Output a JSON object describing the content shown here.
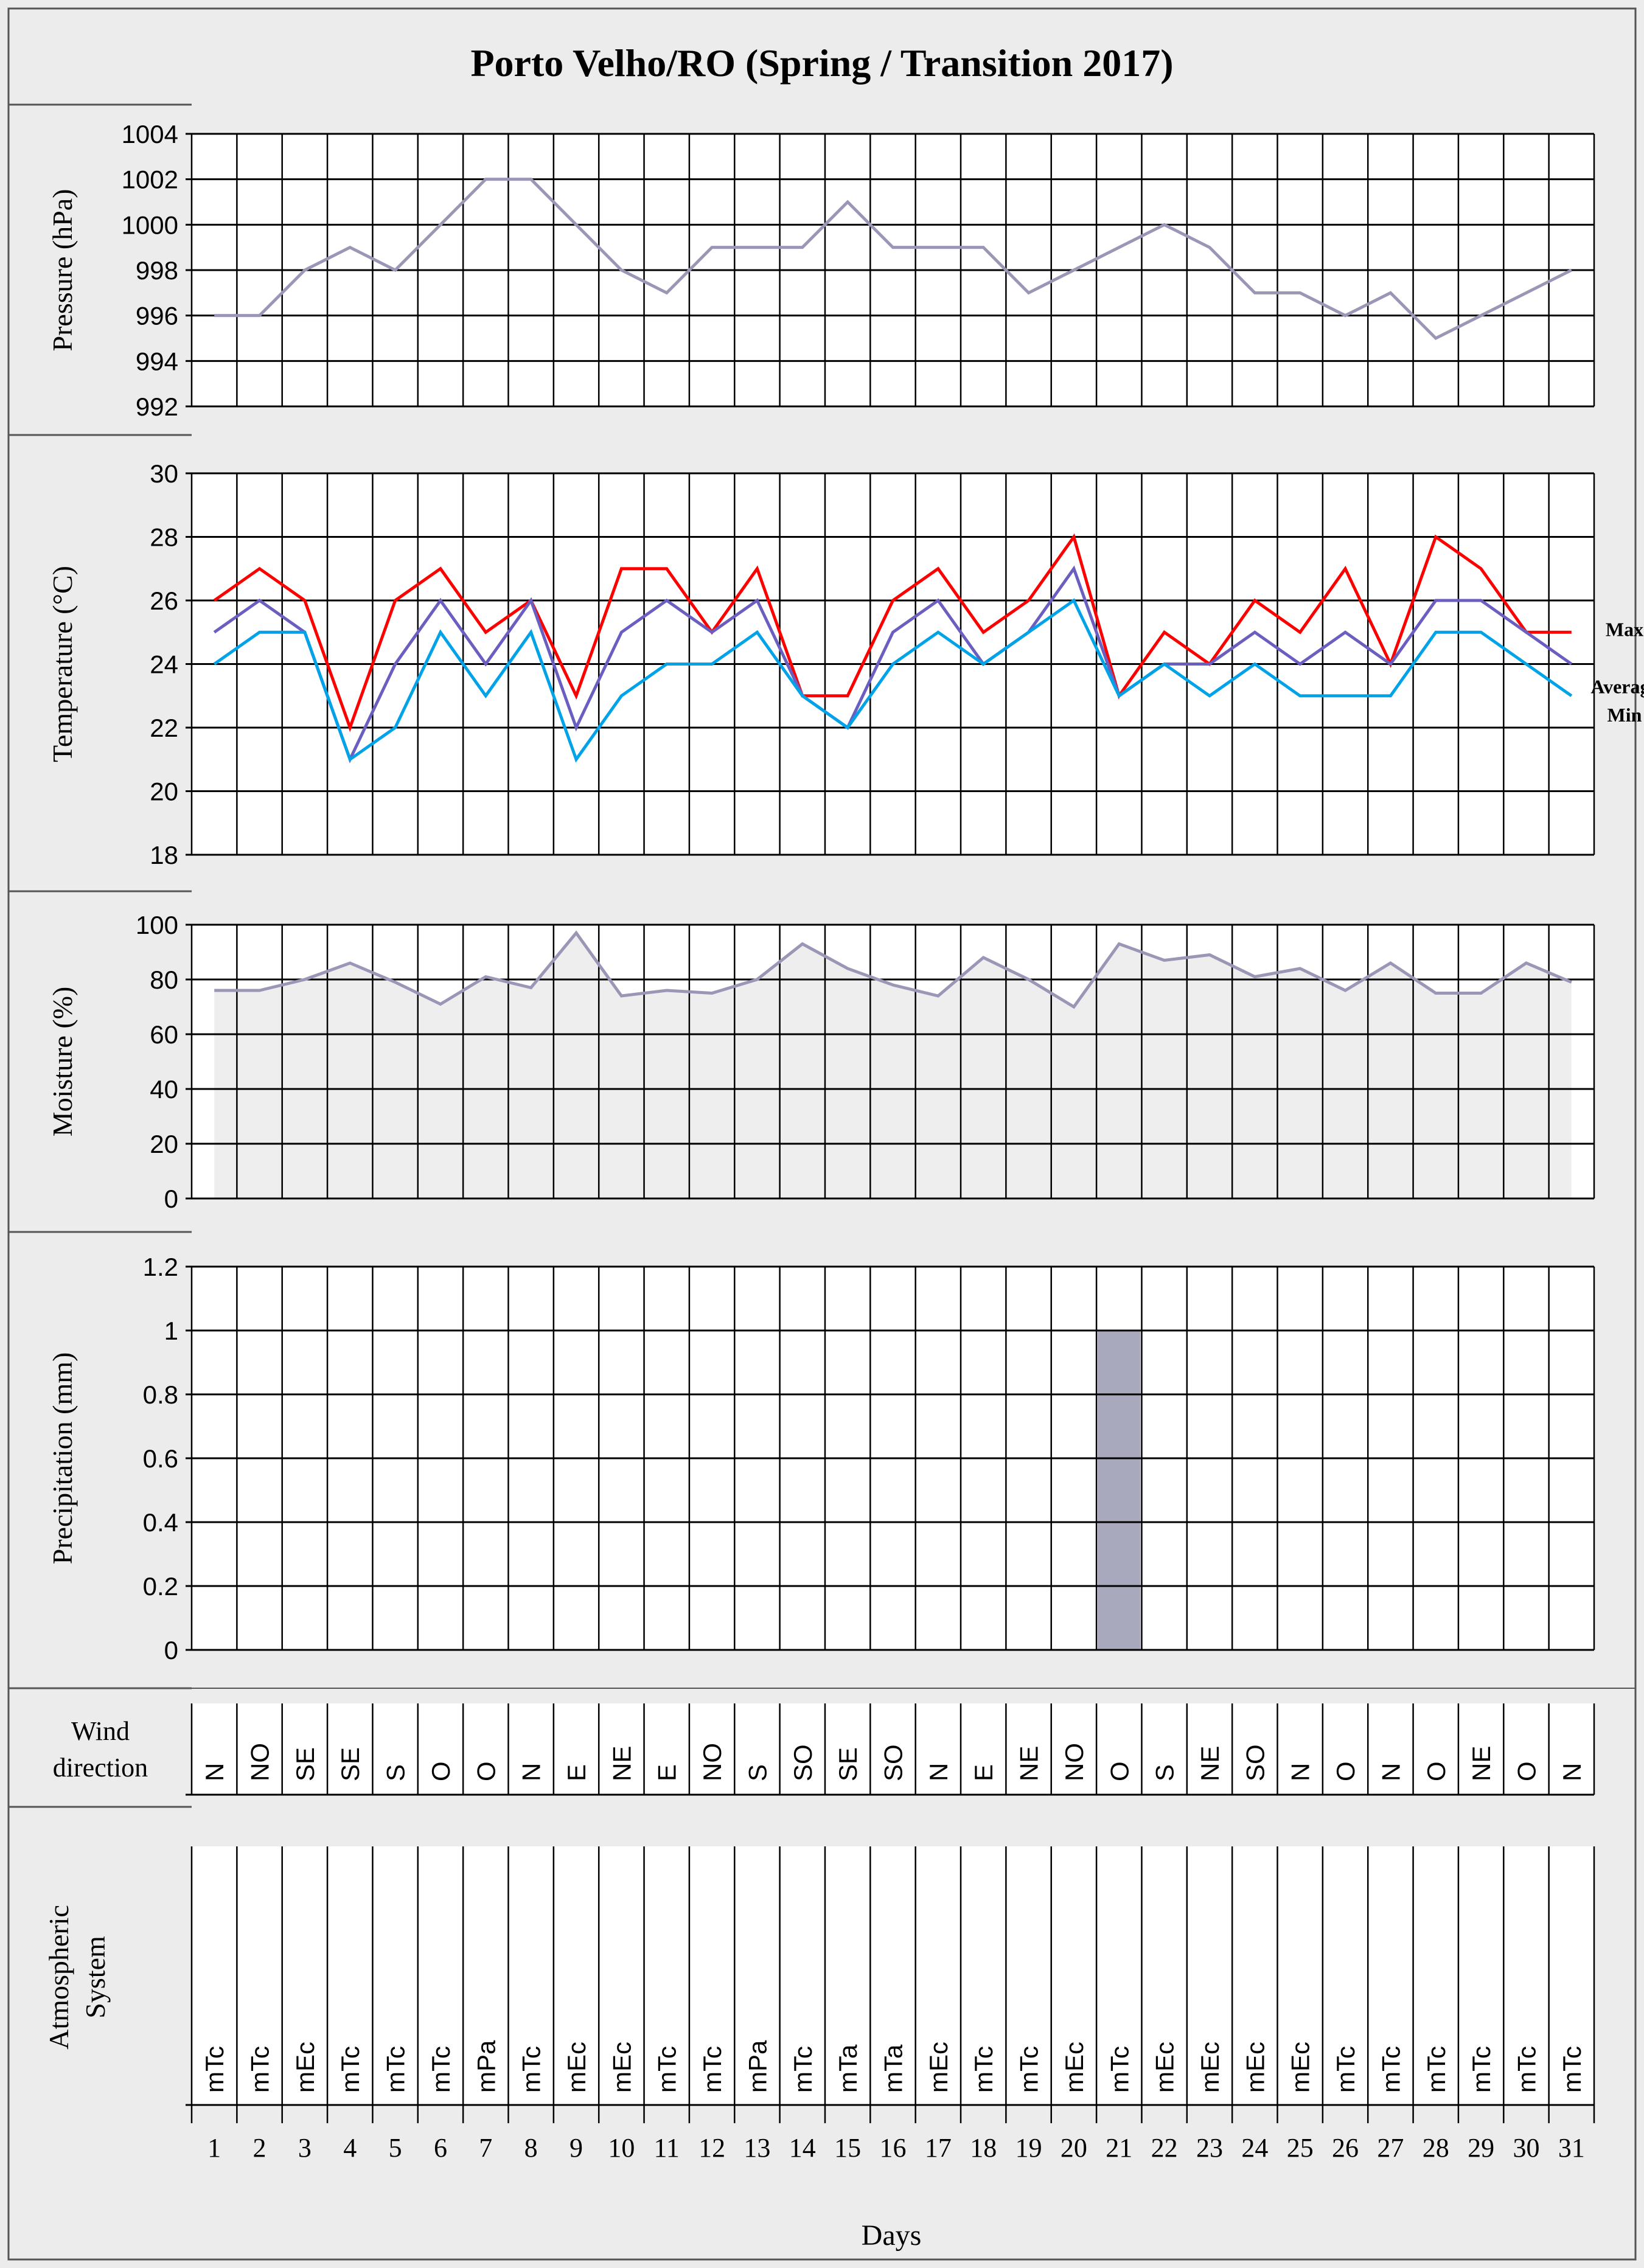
{
  "title": "Porto Velho/RO (Spring / Transition 2017)",
  "colors": {
    "background": "#ececec",
    "plot_bg": "#ffffff",
    "grid": "#000000",
    "pressure": "#9a96b5",
    "max": "#ff0000",
    "average": "#6a5fc0",
    "min": "#00a2e8",
    "moisture_line": "#9a96b5",
    "moisture_fill": "#eeeeee",
    "bar": "#a9a9bd"
  },
  "x_axis": {
    "label": "Days",
    "days": [
      1,
      2,
      3,
      4,
      5,
      6,
      7,
      8,
      9,
      10,
      11,
      12,
      13,
      14,
      15,
      16,
      17,
      18,
      19,
      20,
      21,
      22,
      23,
      24,
      25,
      26,
      27,
      28,
      29,
      30,
      31
    ]
  },
  "chart_data": [
    {
      "id": "pressure",
      "type": "line",
      "ylabel": "Pressure  (hPa)",
      "ylim": [
        992,
        1004
      ],
      "yticks": [
        992,
        994,
        996,
        998,
        1000,
        1002,
        1004
      ],
      "series": [
        {
          "name": "Pressure",
          "values": [
            996,
            996,
            998,
            999,
            998,
            1000,
            1002,
            1002,
            1000,
            998,
            997,
            999,
            999,
            999,
            1001,
            999,
            999,
            999,
            997,
            998,
            999,
            1000,
            999,
            997,
            997,
            996,
            997,
            995,
            996,
            997,
            998
          ]
        }
      ]
    },
    {
      "id": "temperature",
      "type": "line",
      "ylabel": "Temperature  (°C)",
      "ylim": [
        18,
        30
      ],
      "yticks": [
        18,
        20,
        22,
        24,
        26,
        28,
        30
      ],
      "series": [
        {
          "name": "Max",
          "values": [
            26,
            27,
            26,
            22,
            26,
            27,
            25,
            26,
            23,
            27,
            27,
            25,
            27,
            23,
            23,
            26,
            27,
            25,
            26,
            28,
            23,
            25,
            24,
            26,
            25,
            27,
            24,
            28,
            27,
            25,
            25
          ]
        },
        {
          "name": "Average",
          "values": [
            25,
            26,
            25,
            21,
            24,
            26,
            24,
            26,
            22,
            25,
            26,
            25,
            26,
            23,
            22,
            25,
            26,
            24,
            25,
            27,
            23,
            24,
            24,
            25,
            24,
            25,
            24,
            26,
            26,
            25,
            24
          ]
        },
        {
          "name": "Min",
          "values": [
            24,
            25,
            25,
            21,
            22,
            25,
            23,
            25,
            21,
            23,
            24,
            24,
            25,
            23,
            22,
            24,
            25,
            24,
            25,
            26,
            23,
            24,
            23,
            24,
            23,
            23,
            23,
            25,
            25,
            24,
            23
          ]
        }
      ]
    },
    {
      "id": "moisture",
      "type": "area",
      "ylabel": "Moisture  (%)",
      "ylim": [
        0,
        100
      ],
      "yticks": [
        0,
        20,
        40,
        60,
        80,
        100
      ],
      "series": [
        {
          "name": "Moisture",
          "values": [
            76,
            76,
            80,
            86,
            79,
            71,
            81,
            77,
            97,
            74,
            76,
            75,
            80,
            93,
            84,
            78,
            74,
            88,
            80,
            70,
            93,
            87,
            89,
            81,
            84,
            76,
            86,
            75,
            75,
            86,
            79
          ]
        }
      ]
    },
    {
      "id": "precipitation",
      "type": "bar",
      "ylabel": "Precipitation (mm)",
      "ylim": [
        0,
        1.2
      ],
      "yticks": [
        "0",
        "0.2",
        "0.4",
        "0.6",
        "0.8",
        "1",
        "1.2"
      ],
      "series": [
        {
          "name": "Precipitation",
          "values": [
            0,
            0,
            0,
            0,
            0,
            0,
            0,
            0,
            0,
            0,
            0,
            0,
            0,
            0,
            0,
            0,
            0,
            0,
            0,
            0,
            1,
            0,
            0,
            0,
            0,
            0,
            0,
            0,
            0,
            0,
            0
          ]
        }
      ]
    },
    {
      "id": "wind",
      "type": "table",
      "label_line1": "Wind",
      "label_line2": "direction",
      "values": [
        "N",
        "NO",
        "SE",
        "SE",
        "S",
        "O",
        "O",
        "N",
        "E",
        "NE",
        "E",
        "NO",
        "S",
        "SO",
        "SE",
        "SO",
        "N",
        "E",
        "NE",
        "NO",
        "O",
        "S",
        "NE",
        "SO",
        "N",
        "O",
        "N",
        "O",
        "NE",
        "O",
        "N"
      ]
    },
    {
      "id": "atmospheric",
      "type": "table",
      "label_line1": "Atmospheric",
      "label_line2": "System",
      "values": [
        "mTc",
        "mTc",
        "mEc",
        "mTc",
        "mTc",
        "mTc",
        "mPa",
        "mTc",
        "mEc",
        "mEc",
        "mTc",
        "mTc",
        "mPa",
        "mTc",
        "mTa",
        "mTa",
        "mEc",
        "mTc",
        "mTc",
        "mEc",
        "mTc",
        "mEc",
        "mEc",
        "mEc",
        "mEc",
        "mTc",
        "mTc",
        "mTc",
        "mTc",
        "mTc",
        "mTc"
      ]
    }
  ]
}
